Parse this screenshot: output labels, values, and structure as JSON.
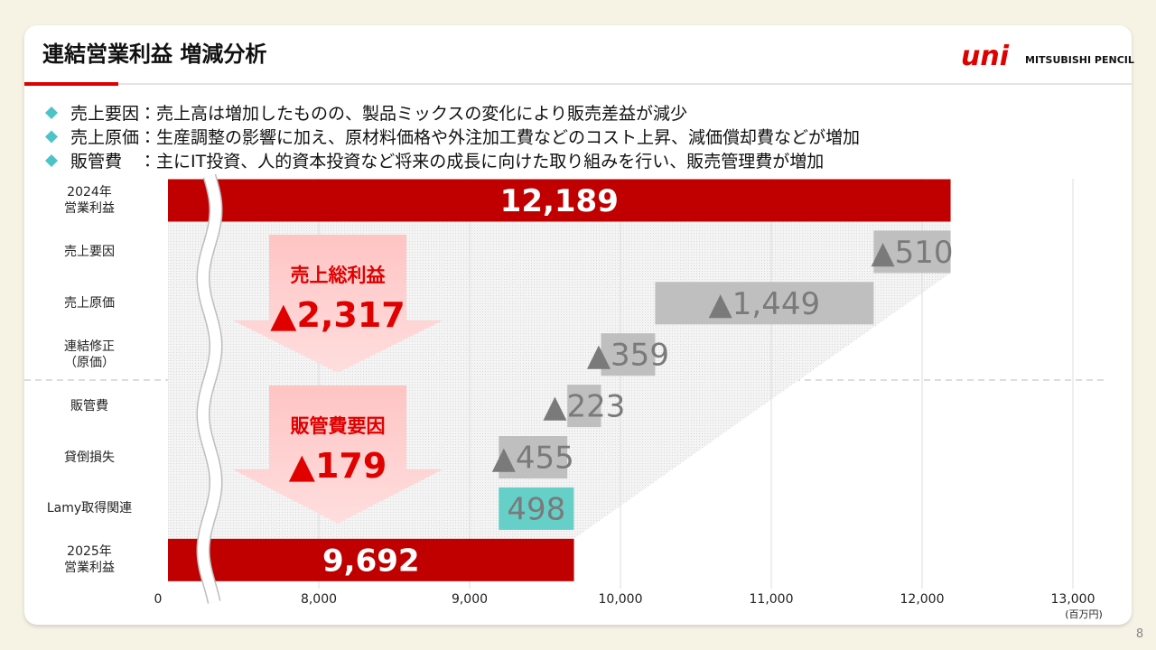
{
  "header": {
    "title": "連結営業利益 増減分析",
    "logo_mark": "uni",
    "logo_text": "MITSUBISHI PENCIL"
  },
  "bullets": [
    "売上要因：売上高は増加したものの、製品ミックスの変化により販売差益が減少",
    "売上原価：生産調整の影響に加え、原材料価格や外注加工費などのコスト上昇、減価償却費などが増加",
    "販管費　：主にIT投資、人的資本投資など将来の成長に向けた取り組みを行い、販売管理費が増加"
  ],
  "chart_data": {
    "type": "waterfall",
    "categories": [
      "2024年\n営業利益",
      "売上要因",
      "売上原価",
      "連結修正\n（原価）",
      "販管費",
      "貸倒損失",
      "Lamy取得関連",
      "2025年\n営業利益"
    ],
    "values": [
      12189,
      -510,
      -1449,
      -359,
      -223,
      -455,
      498,
      9692
    ],
    "value_labels": [
      "12,189",
      "▲510",
      "▲1,449",
      "▲359",
      "▲223",
      "▲455",
      "498",
      "9,692"
    ],
    "totals": [
      true,
      false,
      false,
      false,
      false,
      false,
      false,
      true
    ],
    "colors": {
      "total": "#c00000",
      "decrease": "#bfbfbf",
      "increase": "#66cfc8"
    },
    "xlim": [
      7000,
      13000
    ],
    "xticks": [
      0,
      {
        "value": 8000,
        "label": "8,000"
      },
      {
        "value": 9000,
        "label": "9,000"
      },
      {
        "value": 10000,
        "label": "10,000"
      },
      {
        "value": 11000,
        "label": "11,000"
      },
      {
        "value": 12000,
        "label": "12,000"
      },
      {
        "value": 13000,
        "label": "13,000"
      }
    ],
    "x_unit": "(百万円)",
    "grid": true,
    "annotations": [
      {
        "title": "売上総利益",
        "value": "▲2,317"
      },
      {
        "title": "販管費要因",
        "value": "▲179"
      }
    ]
  },
  "page_number": "8"
}
